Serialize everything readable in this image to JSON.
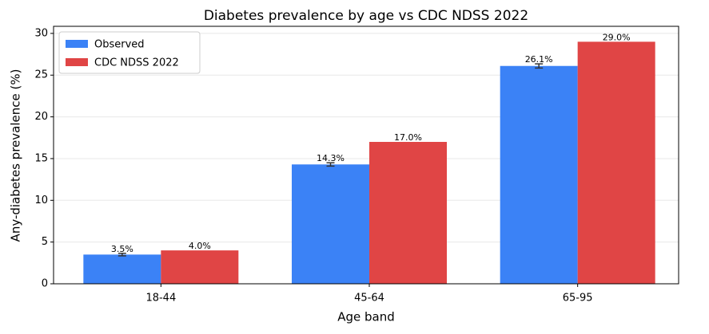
{
  "chart_data": {
    "type": "bar",
    "title": "Diabetes prevalence by age vs CDC NDSS 2022",
    "x_label": "Age band",
    "y_label": "Any-diabetes prevalence (%)",
    "categories": [
      "18-44",
      "45-64",
      "65-95"
    ],
    "series": [
      {
        "name": "Observed",
        "color": "#3b82f6",
        "values": [
          3.5,
          14.3,
          26.1
        ],
        "errors": [
          0.15,
          0.2,
          0.25
        ],
        "value_labels": [
          "3.5%",
          "14.3%",
          "26.1%"
        ]
      },
      {
        "name": "CDC NDSS 2022",
        "color": "#e04545",
        "values": [
          4.0,
          17.0,
          29.0
        ],
        "value_labels": [
          "4.0%",
          "17.0%",
          "29.0%"
        ]
      }
    ],
    "ylim": [
      0,
      30.85
    ],
    "yticks": [
      0,
      5,
      10,
      15,
      20,
      25,
      30
    ],
    "grid": true,
    "legend": "upper-left"
  }
}
